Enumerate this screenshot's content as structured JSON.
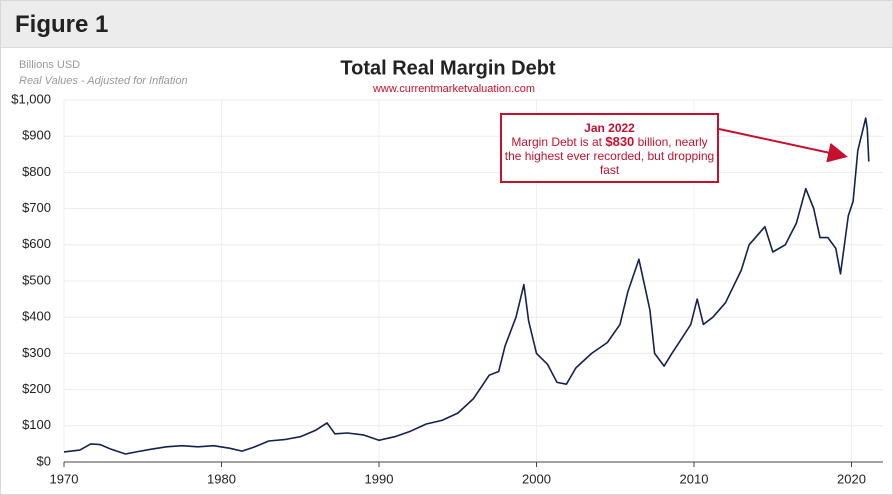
{
  "header": {
    "title": "Figure 1"
  },
  "chart_data": {
    "type": "line",
    "title": "Total Real Margin Debt",
    "subtitle": "www.currentmarketvaluation.com",
    "y_label": "Billions USD",
    "y_note": "Real Values - Adjusted for Inflation",
    "annotation": {
      "title": "Jan 2022",
      "text_before": "Margin Debt is at",
      "highlight": "$830",
      "text_after": "billion, nearly the highest ever recorded, but dropping fast"
    },
    "color": "#13224f",
    "grid": true,
    "xlim": [
      1970,
      2022
    ],
    "xticks": [
      1970,
      1980,
      1990,
      2000,
      2010,
      2020
    ],
    "ylim": [
      0,
      1000
    ],
    "yticks": [
      {
        "value": 0,
        "label": "$0"
      },
      {
        "value": 100,
        "label": "$100"
      },
      {
        "value": 200,
        "label": "$200"
      },
      {
        "value": 300,
        "label": "$300"
      },
      {
        "value": 400,
        "label": "$400"
      },
      {
        "value": 500,
        "label": "$500"
      },
      {
        "value": 600,
        "label": "$600"
      },
      {
        "value": 700,
        "label": "$700"
      },
      {
        "value": 800,
        "label": "$800"
      },
      {
        "value": 900,
        "label": "$900"
      },
      {
        "value": 1000,
        "label": "$1,000"
      }
    ],
    "x": [
      1970,
      1971,
      1971.7,
      1972.3,
      1973,
      1973.9,
      1974.6,
      1975.5,
      1976.5,
      1977.5,
      1978.5,
      1979.5,
      1980.5,
      1981.3,
      1982,
      1983,
      1984,
      1985,
      1986,
      1986.7,
      1987.2,
      1988,
      1989,
      1990,
      1991,
      1992,
      1993,
      1994,
      1995,
      1996,
      1997,
      1997.6,
      1998,
      1998.7,
      1999.2,
      1999.5,
      2000,
      2000.7,
      2001.3,
      2001.9,
      2002.5,
      2003.5,
      2004.5,
      2005.3,
      2005.8,
      2006.5,
      2006.9,
      2007.2,
      2007.5,
      2008.1,
      2008.6,
      2009.2,
      2009.8,
      2010.2,
      2010.6,
      2011.2,
      2012,
      2013,
      2013.5,
      2014.5,
      2015,
      2015.8,
      2016.5,
      2017.1,
      2017.6,
      2018,
      2018.5,
      2019,
      2019.3,
      2019.8,
      2020.1,
      2020.4,
      2020.9,
      2021,
      2021.1
    ],
    "values": [
      28,
      33,
      50,
      48,
      35,
      22,
      28,
      35,
      42,
      45,
      42,
      45,
      38,
      30,
      40,
      58,
      62,
      70,
      88,
      108,
      78,
      80,
      75,
      60,
      70,
      85,
      105,
      115,
      135,
      175,
      240,
      250,
      320,
      400,
      490,
      390,
      300,
      270,
      220,
      215,
      260,
      300,
      330,
      380,
      470,
      560,
      480,
      420,
      300,
      265,
      300,
      340,
      380,
      450,
      380,
      400,
      440,
      530,
      600,
      650,
      580,
      600,
      660,
      755,
      700,
      620,
      620,
      590,
      520,
      680,
      720,
      860,
      950,
      920,
      830
    ]
  }
}
